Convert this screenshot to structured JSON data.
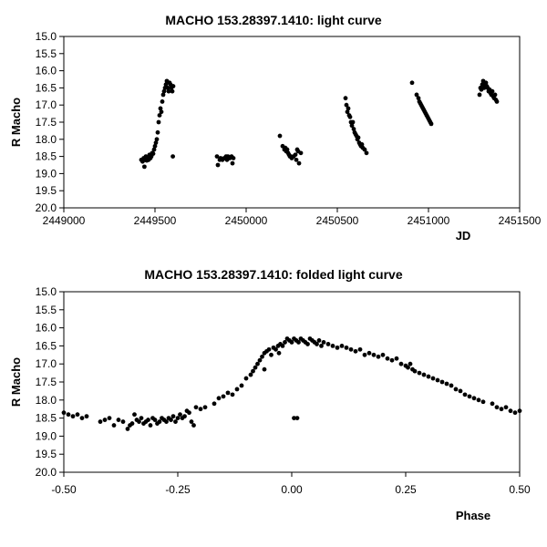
{
  "chart_data": [
    {
      "type": "scatter",
      "title": "MACHO 153.28397.1410: light curve",
      "xlabel": "JD",
      "ylabel": "R Macho",
      "xlim": [
        2449000,
        2451500
      ],
      "ylim": [
        20.0,
        15.0
      ],
      "y_inverted": true,
      "grid": false,
      "x_ticks": [
        2449000,
        2449500,
        2450000,
        2450500,
        2451000,
        2451500
      ],
      "x_tick_labels": [
        "2449000",
        "2449500",
        "2450000",
        "2450500",
        "2451000",
        "2451500"
      ],
      "y_ticks": [
        15.0,
        15.5,
        16.0,
        16.5,
        17.0,
        17.5,
        18.0,
        18.5,
        19.0,
        19.5,
        20.0
      ],
      "y_tick_labels": [
        "15.0",
        "15.5",
        "16.0",
        "16.5",
        "17.0",
        "17.5",
        "18.0",
        "18.5",
        "19.0",
        "19.5",
        "20.0"
      ],
      "points": [
        [
          2449425,
          18.6
        ],
        [
          2449432,
          18.65
        ],
        [
          2449438,
          18.55
        ],
        [
          2449442,
          18.8
        ],
        [
          2449446,
          18.6
        ],
        [
          2449450,
          18.5
        ],
        [
          2449455,
          18.62
        ],
        [
          2449460,
          18.55
        ],
        [
          2449465,
          18.6
        ],
        [
          2449470,
          18.45
        ],
        [
          2449475,
          18.55
        ],
        [
          2449480,
          18.5
        ],
        [
          2449485,
          18.4
        ],
        [
          2449490,
          18.42
        ],
        [
          2449495,
          18.3
        ],
        [
          2449500,
          18.2
        ],
        [
          2449505,
          18.1
        ],
        [
          2449510,
          18.0
        ],
        [
          2449515,
          17.8
        ],
        [
          2449520,
          17.5
        ],
        [
          2449525,
          17.3
        ],
        [
          2449530,
          17.1
        ],
        [
          2449535,
          17.2
        ],
        [
          2449540,
          16.9
        ],
        [
          2449545,
          16.7
        ],
        [
          2449550,
          16.6
        ],
        [
          2449555,
          16.5
        ],
        [
          2449560,
          16.4
        ],
        [
          2449565,
          16.3
        ],
        [
          2449570,
          16.5
        ],
        [
          2449575,
          16.6
        ],
        [
          2449580,
          16.35
        ],
        [
          2449585,
          16.4
        ],
        [
          2449590,
          16.5
        ],
        [
          2449595,
          16.6
        ],
        [
          2449600,
          16.45
        ],
        [
          2449598,
          18.5
        ],
        [
          2449840,
          18.5
        ],
        [
          2449845,
          18.75
        ],
        [
          2449855,
          18.6
        ],
        [
          2449860,
          18.55
        ],
        [
          2449870,
          18.6
        ],
        [
          2449880,
          18.55
        ],
        [
          2449890,
          18.5
        ],
        [
          2449895,
          18.6
        ],
        [
          2449900,
          18.5
        ],
        [
          2449910,
          18.55
        ],
        [
          2449920,
          18.5
        ],
        [
          2449925,
          18.7
        ],
        [
          2449930,
          18.55
        ],
        [
          2450185,
          17.9
        ],
        [
          2450200,
          18.2
        ],
        [
          2450210,
          18.3
        ],
        [
          2450215,
          18.25
        ],
        [
          2450220,
          18.35
        ],
        [
          2450225,
          18.3
        ],
        [
          2450230,
          18.4
        ],
        [
          2450235,
          18.45
        ],
        [
          2450240,
          18.5
        ],
        [
          2450245,
          18.5
        ],
        [
          2450250,
          18.55
        ],
        [
          2450260,
          18.5
        ],
        [
          2450270,
          18.45
        ],
        [
          2450275,
          18.6
        ],
        [
          2450280,
          18.3
        ],
        [
          2450285,
          18.35
        ],
        [
          2450290,
          18.7
        ],
        [
          2450300,
          18.4
        ],
        [
          2450545,
          16.8
        ],
        [
          2450550,
          17.0
        ],
        [
          2450555,
          17.2
        ],
        [
          2450560,
          17.1
        ],
        [
          2450565,
          17.3
        ],
        [
          2450570,
          17.35
        ],
        [
          2450575,
          17.5
        ],
        [
          2450580,
          17.6
        ],
        [
          2450585,
          17.5
        ],
        [
          2450590,
          17.7
        ],
        [
          2450595,
          17.8
        ],
        [
          2450600,
          17.85
        ],
        [
          2450605,
          17.9
        ],
        [
          2450610,
          18.0
        ],
        [
          2450615,
          17.95
        ],
        [
          2450620,
          18.1
        ],
        [
          2450625,
          18.15
        ],
        [
          2450630,
          18.2
        ],
        [
          2450635,
          18.15
        ],
        [
          2450640,
          18.25
        ],
        [
          2450650,
          18.3
        ],
        [
          2450660,
          18.4
        ],
        [
          2450910,
          16.35
        ],
        [
          2450935,
          16.7
        ],
        [
          2450945,
          16.8
        ],
        [
          2450950,
          16.9
        ],
        [
          2450955,
          16.95
        ],
        [
          2450960,
          17.0
        ],
        [
          2450965,
          17.05
        ],
        [
          2450970,
          17.1
        ],
        [
          2450975,
          17.15
        ],
        [
          2450980,
          17.2
        ],
        [
          2450985,
          17.25
        ],
        [
          2450990,
          17.3
        ],
        [
          2450995,
          17.35
        ],
        [
          2451000,
          17.4
        ],
        [
          2451005,
          17.45
        ],
        [
          2451010,
          17.5
        ],
        [
          2451015,
          17.55
        ],
        [
          2451280,
          16.7
        ],
        [
          2451285,
          16.5
        ],
        [
          2451290,
          16.55
        ],
        [
          2451295,
          16.4
        ],
        [
          2451300,
          16.3
        ],
        [
          2451305,
          16.5
        ],
        [
          2451310,
          16.4
        ],
        [
          2451315,
          16.35
        ],
        [
          2451320,
          16.45
        ],
        [
          2451325,
          16.5
        ],
        [
          2451330,
          16.6
        ],
        [
          2451335,
          16.55
        ],
        [
          2451340,
          16.65
        ],
        [
          2451345,
          16.7
        ],
        [
          2451350,
          16.6
        ],
        [
          2451355,
          16.75
        ],
        [
          2451360,
          16.8
        ],
        [
          2451365,
          16.7
        ],
        [
          2451370,
          16.85
        ],
        [
          2451375,
          16.9
        ]
      ]
    },
    {
      "type": "scatter",
      "title": "MACHO 153.28397.1410: folded light curve",
      "xlabel": "Phase",
      "ylabel": "R Macho",
      "xlim": [
        -0.5,
        0.5
      ],
      "ylim": [
        20.0,
        15.0
      ],
      "y_inverted": true,
      "grid": false,
      "x_ticks": [
        -0.5,
        -0.25,
        0.0,
        0.25,
        0.5
      ],
      "x_tick_labels": [
        "-0.50",
        "-0.25",
        "0.00",
        "0.25",
        "0.50"
      ],
      "y_ticks": [
        15.0,
        15.5,
        16.0,
        16.5,
        17.0,
        17.5,
        18.0,
        18.5,
        19.0,
        19.5,
        20.0
      ],
      "y_tick_labels": [
        "15.0",
        "15.5",
        "16.0",
        "16.5",
        "17.0",
        "17.5",
        "18.0",
        "18.5",
        "19.0",
        "19.5",
        "20.0"
      ],
      "points": [
        [
          -0.5,
          18.35
        ],
        [
          -0.49,
          18.4
        ],
        [
          -0.48,
          18.45
        ],
        [
          -0.47,
          18.4
        ],
        [
          -0.46,
          18.5
        ],
        [
          -0.45,
          18.45
        ],
        [
          -0.42,
          18.6
        ],
        [
          -0.41,
          18.55
        ],
        [
          -0.4,
          18.5
        ],
        [
          -0.39,
          18.7
        ],
        [
          -0.38,
          18.55
        ],
        [
          -0.37,
          18.6
        ],
        [
          -0.36,
          18.8
        ],
        [
          -0.355,
          18.7
        ],
        [
          -0.35,
          18.65
        ],
        [
          -0.345,
          18.4
        ],
        [
          -0.34,
          18.55
        ],
        [
          -0.335,
          18.6
        ],
        [
          -0.33,
          18.5
        ],
        [
          -0.325,
          18.65
        ],
        [
          -0.32,
          18.6
        ],
        [
          -0.315,
          18.55
        ],
        [
          -0.31,
          18.7
        ],
        [
          -0.305,
          18.5
        ],
        [
          -0.3,
          18.55
        ],
        [
          -0.295,
          18.65
        ],
        [
          -0.29,
          18.6
        ],
        [
          -0.285,
          18.5
        ],
        [
          -0.28,
          18.55
        ],
        [
          -0.275,
          18.6
        ],
        [
          -0.27,
          18.5
        ],
        [
          -0.265,
          18.55
        ],
        [
          -0.26,
          18.45
        ],
        [
          -0.255,
          18.6
        ],
        [
          -0.25,
          18.5
        ],
        [
          -0.245,
          18.4
        ],
        [
          -0.24,
          18.5
        ],
        [
          -0.235,
          18.45
        ],
        [
          -0.23,
          18.3
        ],
        [
          -0.225,
          18.35
        ],
        [
          -0.22,
          18.6
        ],
        [
          -0.215,
          18.7
        ],
        [
          -0.21,
          18.2
        ],
        [
          -0.2,
          18.25
        ],
        [
          -0.19,
          18.2
        ],
        [
          -0.17,
          18.1
        ],
        [
          -0.16,
          17.95
        ],
        [
          -0.15,
          17.9
        ],
        [
          -0.14,
          17.8
        ],
        [
          -0.13,
          17.85
        ],
        [
          -0.12,
          17.7
        ],
        [
          -0.11,
          17.6
        ],
        [
          -0.1,
          17.4
        ],
        [
          -0.09,
          17.3
        ],
        [
          -0.085,
          17.2
        ],
        [
          -0.08,
          17.1
        ],
        [
          -0.075,
          17.0
        ],
        [
          -0.07,
          16.9
        ],
        [
          -0.065,
          16.8
        ],
        [
          -0.06,
          16.7
        ],
        [
          -0.055,
          16.65
        ],
        [
          -0.05,
          16.6
        ],
        [
          -0.045,
          16.75
        ],
        [
          -0.04,
          16.55
        ],
        [
          -0.035,
          16.6
        ],
        [
          -0.03,
          16.5
        ],
        [
          -0.028,
          16.7
        ],
        [
          -0.025,
          16.45
        ],
        [
          -0.02,
          16.5
        ],
        [
          -0.015,
          16.4
        ],
        [
          -0.01,
          16.3
        ],
        [
          -0.005,
          16.35
        ],
        [
          0.0,
          16.4
        ],
        [
          0.005,
          16.3
        ],
        [
          0.01,
          16.35
        ],
        [
          0.015,
          16.4
        ],
        [
          0.02,
          16.3
        ],
        [
          0.025,
          16.35
        ],
        [
          0.03,
          16.4
        ],
        [
          0.035,
          16.45
        ],
        [
          0.04,
          16.3
        ],
        [
          0.045,
          16.35
        ],
        [
          0.05,
          16.4
        ],
        [
          0.055,
          16.45
        ],
        [
          0.06,
          16.35
        ],
        [
          0.065,
          16.5
        ],
        [
          0.07,
          16.4
        ],
        [
          0.08,
          16.45
        ],
        [
          0.09,
          16.5
        ],
        [
          0.1,
          16.55
        ],
        [
          0.11,
          16.5
        ],
        [
          0.12,
          16.55
        ],
        [
          0.13,
          16.6
        ],
        [
          0.14,
          16.65
        ],
        [
          0.15,
          16.6
        ],
        [
          0.16,
          16.75
        ],
        [
          0.17,
          16.7
        ],
        [
          0.18,
          16.75
        ],
        [
          0.19,
          16.8
        ],
        [
          0.2,
          16.75
        ],
        [
          0.21,
          16.85
        ],
        [
          0.22,
          16.9
        ],
        [
          0.23,
          16.85
        ],
        [
          0.24,
          17.0
        ],
        [
          0.25,
          17.05
        ],
        [
          0.255,
          17.1
        ],
        [
          0.26,
          17.0
        ],
        [
          0.265,
          17.15
        ],
        [
          0.27,
          17.2
        ],
        [
          0.28,
          17.25
        ],
        [
          0.29,
          17.3
        ],
        [
          0.3,
          17.35
        ],
        [
          0.31,
          17.4
        ],
        [
          0.32,
          17.45
        ],
        [
          0.33,
          17.5
        ],
        [
          0.34,
          17.55
        ],
        [
          0.35,
          17.6
        ],
        [
          0.36,
          17.7
        ],
        [
          0.37,
          17.75
        ],
        [
          0.38,
          17.85
        ],
        [
          0.39,
          17.9
        ],
        [
          0.4,
          17.95
        ],
        [
          0.41,
          18.0
        ],
        [
          0.42,
          18.05
        ],
        [
          0.44,
          18.1
        ],
        [
          0.45,
          18.2
        ],
        [
          0.46,
          18.25
        ],
        [
          0.47,
          18.2
        ],
        [
          0.48,
          18.3
        ],
        [
          0.49,
          18.35
        ],
        [
          0.5,
          18.3
        ],
        [
          -0.06,
          17.15
        ],
        [
          0.005,
          18.5
        ],
        [
          0.012,
          18.5
        ]
      ]
    }
  ]
}
